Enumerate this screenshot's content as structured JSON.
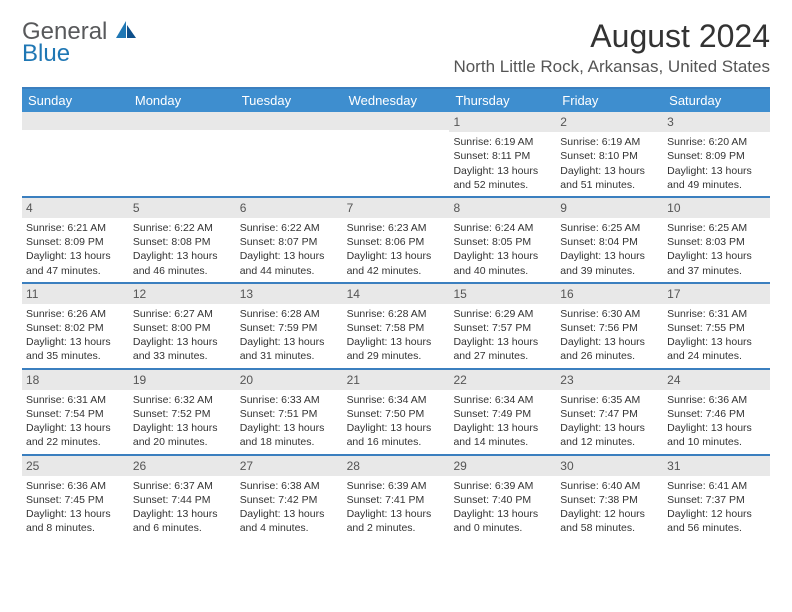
{
  "logo": {
    "general": "General",
    "blue": "Blue"
  },
  "title": "August 2024",
  "location": "North Little Rock, Arkansas, United States",
  "colors": {
    "header_bar": "#3e8ecf",
    "rule": "#3b7fbf",
    "daynum_bg": "#e8e8e8",
    "logo_gray": "#58595b",
    "logo_blue": "#1f77b4"
  },
  "weekdays": [
    "Sunday",
    "Monday",
    "Tuesday",
    "Wednesday",
    "Thursday",
    "Friday",
    "Saturday"
  ],
  "weeks": [
    [
      {
        "n": "",
        "sr": "",
        "ss": "",
        "dl1": "",
        "dl2": ""
      },
      {
        "n": "",
        "sr": "",
        "ss": "",
        "dl1": "",
        "dl2": ""
      },
      {
        "n": "",
        "sr": "",
        "ss": "",
        "dl1": "",
        "dl2": ""
      },
      {
        "n": "",
        "sr": "",
        "ss": "",
        "dl1": "",
        "dl2": ""
      },
      {
        "n": "1",
        "sr": "Sunrise: 6:19 AM",
        "ss": "Sunset: 8:11 PM",
        "dl1": "Daylight: 13 hours",
        "dl2": "and 52 minutes."
      },
      {
        "n": "2",
        "sr": "Sunrise: 6:19 AM",
        "ss": "Sunset: 8:10 PM",
        "dl1": "Daylight: 13 hours",
        "dl2": "and 51 minutes."
      },
      {
        "n": "3",
        "sr": "Sunrise: 6:20 AM",
        "ss": "Sunset: 8:09 PM",
        "dl1": "Daylight: 13 hours",
        "dl2": "and 49 minutes."
      }
    ],
    [
      {
        "n": "4",
        "sr": "Sunrise: 6:21 AM",
        "ss": "Sunset: 8:09 PM",
        "dl1": "Daylight: 13 hours",
        "dl2": "and 47 minutes."
      },
      {
        "n": "5",
        "sr": "Sunrise: 6:22 AM",
        "ss": "Sunset: 8:08 PM",
        "dl1": "Daylight: 13 hours",
        "dl2": "and 46 minutes."
      },
      {
        "n": "6",
        "sr": "Sunrise: 6:22 AM",
        "ss": "Sunset: 8:07 PM",
        "dl1": "Daylight: 13 hours",
        "dl2": "and 44 minutes."
      },
      {
        "n": "7",
        "sr": "Sunrise: 6:23 AM",
        "ss": "Sunset: 8:06 PM",
        "dl1": "Daylight: 13 hours",
        "dl2": "and 42 minutes."
      },
      {
        "n": "8",
        "sr": "Sunrise: 6:24 AM",
        "ss": "Sunset: 8:05 PM",
        "dl1": "Daylight: 13 hours",
        "dl2": "and 40 minutes."
      },
      {
        "n": "9",
        "sr": "Sunrise: 6:25 AM",
        "ss": "Sunset: 8:04 PM",
        "dl1": "Daylight: 13 hours",
        "dl2": "and 39 minutes."
      },
      {
        "n": "10",
        "sr": "Sunrise: 6:25 AM",
        "ss": "Sunset: 8:03 PM",
        "dl1": "Daylight: 13 hours",
        "dl2": "and 37 minutes."
      }
    ],
    [
      {
        "n": "11",
        "sr": "Sunrise: 6:26 AM",
        "ss": "Sunset: 8:02 PM",
        "dl1": "Daylight: 13 hours",
        "dl2": "and 35 minutes."
      },
      {
        "n": "12",
        "sr": "Sunrise: 6:27 AM",
        "ss": "Sunset: 8:00 PM",
        "dl1": "Daylight: 13 hours",
        "dl2": "and 33 minutes."
      },
      {
        "n": "13",
        "sr": "Sunrise: 6:28 AM",
        "ss": "Sunset: 7:59 PM",
        "dl1": "Daylight: 13 hours",
        "dl2": "and 31 minutes."
      },
      {
        "n": "14",
        "sr": "Sunrise: 6:28 AM",
        "ss": "Sunset: 7:58 PM",
        "dl1": "Daylight: 13 hours",
        "dl2": "and 29 minutes."
      },
      {
        "n": "15",
        "sr": "Sunrise: 6:29 AM",
        "ss": "Sunset: 7:57 PM",
        "dl1": "Daylight: 13 hours",
        "dl2": "and 27 minutes."
      },
      {
        "n": "16",
        "sr": "Sunrise: 6:30 AM",
        "ss": "Sunset: 7:56 PM",
        "dl1": "Daylight: 13 hours",
        "dl2": "and 26 minutes."
      },
      {
        "n": "17",
        "sr": "Sunrise: 6:31 AM",
        "ss": "Sunset: 7:55 PM",
        "dl1": "Daylight: 13 hours",
        "dl2": "and 24 minutes."
      }
    ],
    [
      {
        "n": "18",
        "sr": "Sunrise: 6:31 AM",
        "ss": "Sunset: 7:54 PM",
        "dl1": "Daylight: 13 hours",
        "dl2": "and 22 minutes."
      },
      {
        "n": "19",
        "sr": "Sunrise: 6:32 AM",
        "ss": "Sunset: 7:52 PM",
        "dl1": "Daylight: 13 hours",
        "dl2": "and 20 minutes."
      },
      {
        "n": "20",
        "sr": "Sunrise: 6:33 AM",
        "ss": "Sunset: 7:51 PM",
        "dl1": "Daylight: 13 hours",
        "dl2": "and 18 minutes."
      },
      {
        "n": "21",
        "sr": "Sunrise: 6:34 AM",
        "ss": "Sunset: 7:50 PM",
        "dl1": "Daylight: 13 hours",
        "dl2": "and 16 minutes."
      },
      {
        "n": "22",
        "sr": "Sunrise: 6:34 AM",
        "ss": "Sunset: 7:49 PM",
        "dl1": "Daylight: 13 hours",
        "dl2": "and 14 minutes."
      },
      {
        "n": "23",
        "sr": "Sunrise: 6:35 AM",
        "ss": "Sunset: 7:47 PM",
        "dl1": "Daylight: 13 hours",
        "dl2": "and 12 minutes."
      },
      {
        "n": "24",
        "sr": "Sunrise: 6:36 AM",
        "ss": "Sunset: 7:46 PM",
        "dl1": "Daylight: 13 hours",
        "dl2": "and 10 minutes."
      }
    ],
    [
      {
        "n": "25",
        "sr": "Sunrise: 6:36 AM",
        "ss": "Sunset: 7:45 PM",
        "dl1": "Daylight: 13 hours",
        "dl2": "and 8 minutes."
      },
      {
        "n": "26",
        "sr": "Sunrise: 6:37 AM",
        "ss": "Sunset: 7:44 PM",
        "dl1": "Daylight: 13 hours",
        "dl2": "and 6 minutes."
      },
      {
        "n": "27",
        "sr": "Sunrise: 6:38 AM",
        "ss": "Sunset: 7:42 PM",
        "dl1": "Daylight: 13 hours",
        "dl2": "and 4 minutes."
      },
      {
        "n": "28",
        "sr": "Sunrise: 6:39 AM",
        "ss": "Sunset: 7:41 PM",
        "dl1": "Daylight: 13 hours",
        "dl2": "and 2 minutes."
      },
      {
        "n": "29",
        "sr": "Sunrise: 6:39 AM",
        "ss": "Sunset: 7:40 PM",
        "dl1": "Daylight: 13 hours",
        "dl2": "and 0 minutes."
      },
      {
        "n": "30",
        "sr": "Sunrise: 6:40 AM",
        "ss": "Sunset: 7:38 PM",
        "dl1": "Daylight: 12 hours",
        "dl2": "and 58 minutes."
      },
      {
        "n": "31",
        "sr": "Sunrise: 6:41 AM",
        "ss": "Sunset: 7:37 PM",
        "dl1": "Daylight: 12 hours",
        "dl2": "and 56 minutes."
      }
    ]
  ]
}
